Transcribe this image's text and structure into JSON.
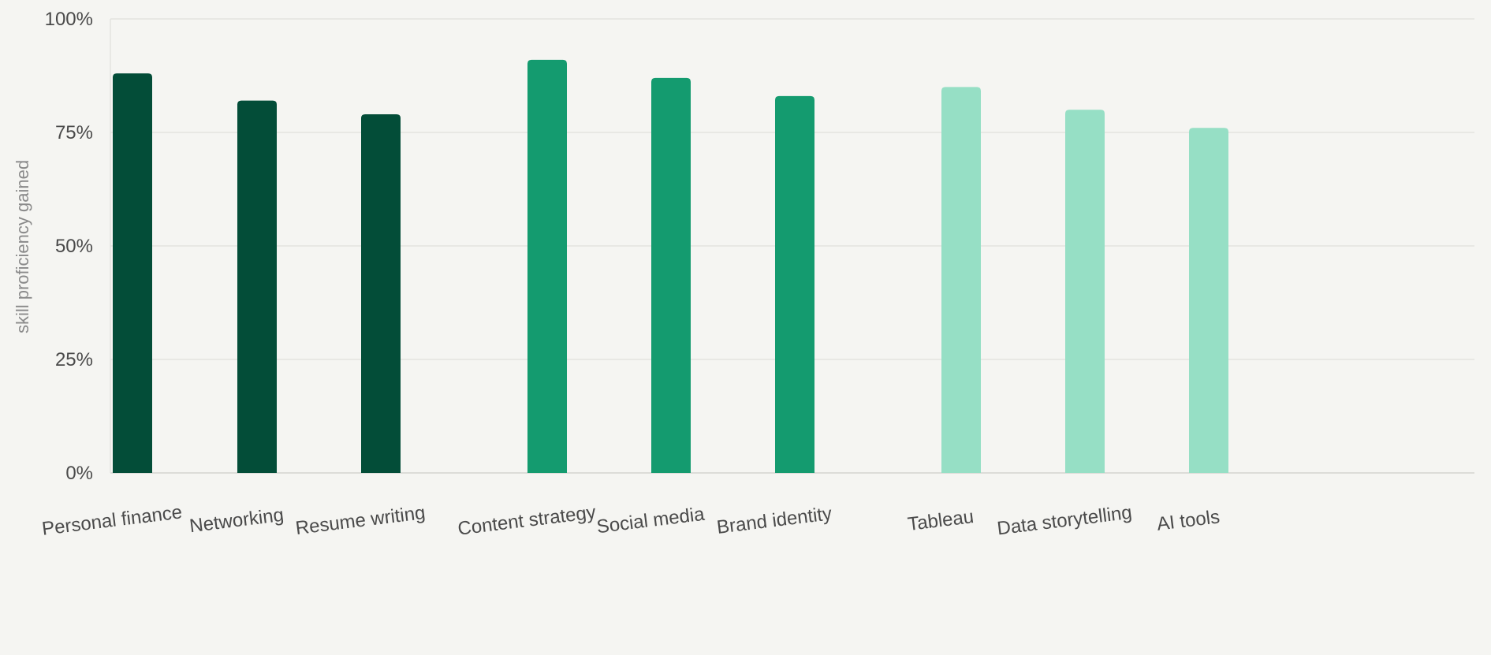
{
  "chart_data": {
    "type": "bar",
    "title": "",
    "xlabel": "",
    "ylabel": "skill proficiency gained",
    "ylim": [
      0,
      100
    ],
    "yticks": [
      {
        "value": 0,
        "label": "0%"
      },
      {
        "value": 25,
        "label": "25%"
      },
      {
        "value": 50,
        "label": "50%"
      },
      {
        "value": 75,
        "label": "75%"
      },
      {
        "value": 100,
        "label": "100%"
      }
    ],
    "grid": true,
    "legend": "none",
    "categories": [
      "Personal finance",
      "Networking",
      "Resume writing",
      "Content strategy",
      "Social media",
      "Brand identity",
      "Tableau",
      "Data storytelling",
      "AI tools"
    ],
    "values": [
      88,
      82,
      79,
      91,
      87,
      83,
      85,
      80,
      76
    ],
    "bar_colors": [
      "#034d38",
      "#034d38",
      "#034d38",
      "#149b6f",
      "#149b6f",
      "#149b6f",
      "#96dfc5",
      "#96dfc5",
      "#96dfc5"
    ]
  }
}
